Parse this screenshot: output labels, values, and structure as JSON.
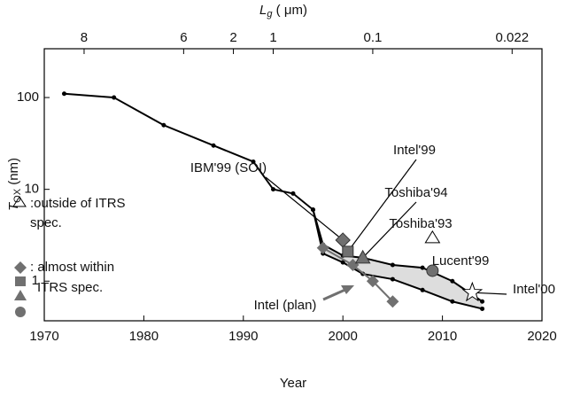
{
  "chart_data": {
    "type": "line",
    "x_axis_label": "Year",
    "y_axis_label": {
      "main": "T",
      "sub": "OX",
      "rest": " (nm)"
    },
    "top_axis_label": {
      "main": "L",
      "sub": "g",
      "rest": " ( μm)"
    },
    "xlim": [
      1970,
      2020
    ],
    "xticks": [
      1970,
      1980,
      1990,
      2000,
      2010,
      2020
    ],
    "ylim": [
      0.37,
      340
    ],
    "log_y": true,
    "yticks": [
      1,
      10,
      100
    ],
    "top_ticks": [
      {
        "value": 1974,
        "label": "8"
      },
      {
        "value": 1984,
        "label": "6"
      },
      {
        "value": 1989,
        "label": "2"
      },
      {
        "value": 1993,
        "label": "1"
      },
      {
        "value": 2003,
        "label": "0.1"
      },
      {
        "value": 2017,
        "label": "0.022"
      }
    ],
    "series": [
      {
        "color": "#000000",
        "x": [
          1972,
          1977,
          1982,
          1987,
          1991,
          1993,
          1995,
          1997,
          1998,
          2000,
          2002,
          2005,
          2008,
          2011,
          2014
        ],
        "values": [
          110,
          100,
          50,
          30,
          20,
          10,
          9,
          6,
          2.5,
          1.9,
          1.8,
          1.5,
          1.4,
          1.0,
          0.6
        ]
      },
      {
        "color": "#000000",
        "x": [
          1997,
          1998,
          2000,
          2002,
          2005,
          2008,
          2011,
          2014
        ],
        "values": [
          6,
          2.0,
          1.6,
          1.2,
          1.05,
          0.8,
          0.6,
          0.5
        ]
      },
      {
        "color": "#707070",
        "x": [
          1998,
          2001,
          2003,
          2005
        ],
        "values": [
          2.3,
          1.5,
          1.0,
          0.6
        ]
      }
    ],
    "shade_color": "#dddddd",
    "points": [
      {
        "x": 2000,
        "y": 2.8,
        "marker": "diamond"
      },
      {
        "x": 2000.5,
        "y": 2.1,
        "marker": "square"
      },
      {
        "x": 2002,
        "y": 1.8,
        "marker": "triangle"
      },
      {
        "x": 2009,
        "y": 1.3,
        "marker": "circle"
      },
      {
        "x": 2009,
        "y": 3.0,
        "marker": "open-triangle"
      },
      {
        "x": 2013,
        "y": 0.75,
        "marker": "star"
      }
    ],
    "annotations": [
      "IBM'99 (SOI)",
      "Intel'99",
      "Toshiba'94",
      "Toshiba'93",
      "Lucent'99",
      "Intel'00",
      "Intel (plan)"
    ],
    "legend_text": [
      ":outside of ITRS",
      "spec.",
      ": almost within",
      "ITRS spec."
    ]
  }
}
